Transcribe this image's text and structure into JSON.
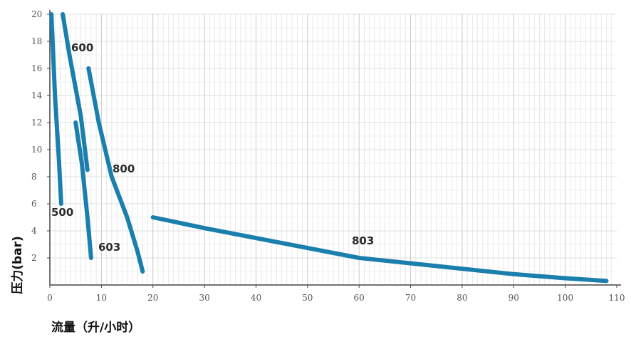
{
  "chart_data": {
    "type": "line",
    "xlabel": "流量（升/小时）",
    "ylabel": "压力(bar)",
    "xlim": [
      0,
      110
    ],
    "ylim": [
      0,
      20
    ],
    "x_ticks": [
      "0",
      "10",
      "20",
      "30",
      "40",
      "50",
      "60",
      "70",
      "80",
      "90",
      "100",
      "110"
    ],
    "y_ticks": [
      "2",
      "4",
      "6",
      "8",
      "10",
      "12",
      "14",
      "16",
      "18",
      "20"
    ],
    "grid": true,
    "line_color": "#1a7fad",
    "series": [
      {
        "name": "500",
        "points": [
          [
            0.3,
            20
          ],
          [
            1,
            14
          ],
          [
            1.8,
            9
          ],
          [
            2.2,
            6
          ]
        ]
      },
      {
        "name": "600",
        "points": [
          [
            2.5,
            20
          ],
          [
            3.8,
            17
          ],
          [
            6,
            12.5
          ],
          [
            7.3,
            8.5
          ]
        ]
      },
      {
        "name": "603",
        "points": [
          [
            5,
            12
          ],
          [
            6.2,
            9
          ],
          [
            7.3,
            5
          ],
          [
            8,
            2
          ]
        ]
      },
      {
        "name": "800",
        "points": [
          [
            7.5,
            16
          ],
          [
            9.5,
            12
          ],
          [
            12,
            8
          ],
          [
            15,
            5
          ],
          [
            17,
            2.5
          ],
          [
            18,
            1
          ]
        ]
      },
      {
        "name": "803",
        "points": [
          [
            20,
            5
          ],
          [
            30,
            4.2
          ],
          [
            45,
            3.1
          ],
          [
            60,
            2
          ],
          [
            75,
            1.4
          ],
          [
            90,
            0.8
          ],
          [
            100,
            0.5
          ],
          [
            108,
            0.3
          ]
        ]
      }
    ]
  }
}
